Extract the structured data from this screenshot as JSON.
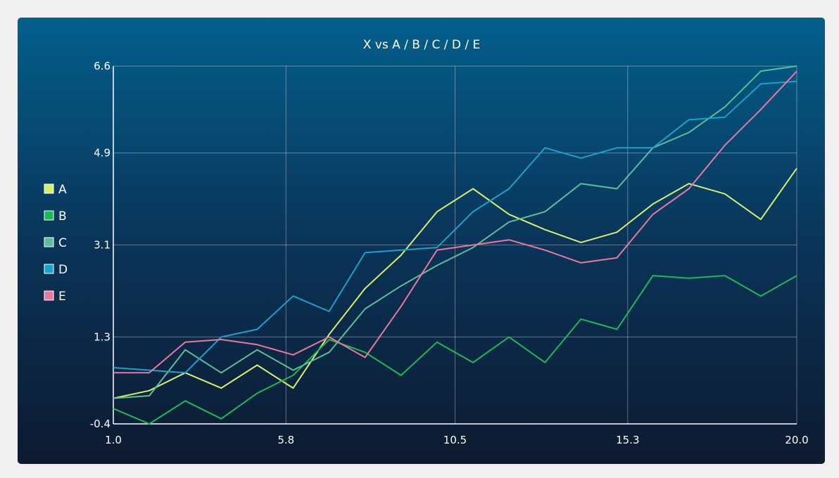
{
  "chart_data": {
    "type": "line",
    "title": "X vs A / B / C / D / E",
    "xlabel": "",
    "ylabel": "",
    "xlim": [
      1.0,
      20.0
    ],
    "ylim": [
      -0.4,
      6.6
    ],
    "x_ticks": [
      "1.0",
      "5.8",
      "10.5",
      "15.3",
      "20.0"
    ],
    "y_ticks": [
      "6.6",
      "4.9",
      "3.1",
      "1.3",
      "-0.4"
    ],
    "grid": true,
    "legend_position": "left",
    "x": [
      1,
      2,
      3,
      4,
      5,
      6,
      7,
      8,
      9,
      10,
      11,
      12,
      13,
      14,
      15,
      16,
      17,
      18,
      19,
      20
    ],
    "series": [
      {
        "name": "A",
        "color": "#d9ee6a",
        "values": [
          0.1,
          0.25,
          0.6,
          0.3,
          0.75,
          0.3,
          1.35,
          2.25,
          2.9,
          3.75,
          4.2,
          3.7,
          3.4,
          3.15,
          3.35,
          3.9,
          4.3,
          4.1,
          3.6,
          4.6
        ]
      },
      {
        "name": "B",
        "color": "#1db954",
        "values": [
          -0.1,
          -0.4,
          0.05,
          -0.3,
          0.2,
          0.55,
          1.25,
          1.0,
          0.55,
          1.2,
          0.8,
          1.3,
          0.8,
          1.65,
          1.45,
          2.5,
          2.45,
          2.5,
          2.1,
          2.5
        ]
      },
      {
        "name": "C",
        "color": "#5bbf95",
        "values": [
          0.1,
          0.15,
          1.05,
          0.6,
          1.05,
          0.65,
          1.0,
          1.85,
          2.3,
          2.7,
          3.05,
          3.55,
          3.75,
          4.3,
          4.2,
          5.0,
          5.3,
          5.8,
          6.5,
          6.6
        ]
      },
      {
        "name": "D",
        "color": "#1aa3c9",
        "values": [
          0.7,
          0.65,
          0.6,
          1.3,
          1.45,
          2.1,
          1.8,
          2.95,
          3.0,
          3.05,
          3.75,
          4.2,
          5.0,
          4.8,
          5.0,
          5.0,
          5.55,
          5.6,
          6.25,
          6.3
        ]
      },
      {
        "name": "E",
        "color": "#e8799a",
        "values": [
          0.6,
          0.6,
          1.2,
          1.25,
          1.15,
          0.95,
          1.3,
          0.9,
          1.9,
          3.0,
          3.1,
          3.2,
          3.0,
          2.75,
          2.85,
          3.7,
          4.2,
          5.05,
          5.75,
          6.5
        ]
      }
    ]
  }
}
